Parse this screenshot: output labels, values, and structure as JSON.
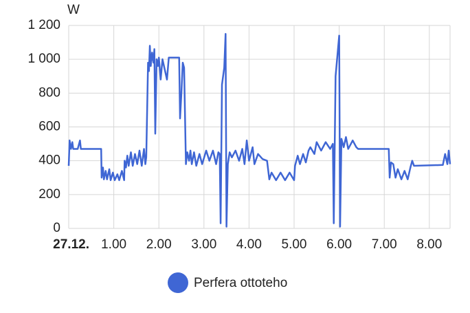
{
  "chart_data": {
    "type": "line",
    "y_label": "W",
    "xlim": [
      0,
      8.46
    ],
    "xticks": [
      {
        "value": 0,
        "label": "27.12."
      },
      {
        "value": 1,
        "label": "1.00"
      },
      {
        "value": 2,
        "label": "2.00"
      },
      {
        "value": 3,
        "label": "3.00"
      },
      {
        "value": 4,
        "label": "4.00"
      },
      {
        "value": 5,
        "label": "5.00"
      },
      {
        "value": 6,
        "label": "6.00"
      },
      {
        "value": 7,
        "label": "7.00"
      },
      {
        "value": 8,
        "label": "8.00"
      }
    ],
    "ylim": [
      0,
      1200
    ],
    "yticks": [
      0,
      200,
      400,
      600,
      800,
      {
        "value": 1000,
        "label": "1 000"
      },
      {
        "value": 1200,
        "label": "1 200"
      }
    ],
    "grid": true,
    "x": [
      0,
      0.02,
      0.05,
      0.08,
      0.1,
      0.2,
      0.25,
      0.27,
      0.72,
      0.73,
      0.76,
      0.78,
      0.82,
      0.85,
      0.9,
      0.93,
      0.98,
      1.02,
      1.08,
      1.12,
      1.18,
      1.23,
      1.24,
      1.27,
      1.3,
      1.33,
      1.38,
      1.42,
      1.47,
      1.52,
      1.57,
      1.62,
      1.67,
      1.7,
      1.72,
      1.76,
      1.78,
      1.8,
      1.82,
      1.85,
      1.88,
      1.9,
      1.92,
      1.95,
      1.98,
      2.0,
      2.04,
      2.08,
      2.18,
      2.22,
      2.45,
      2.47,
      2.5,
      2.53,
      2.56,
      2.6,
      2.63,
      2.67,
      2.7,
      2.73,
      2.78,
      2.83,
      2.9,
      2.96,
      3.05,
      3.12,
      3.2,
      3.27,
      3.32,
      3.35,
      3.37,
      3.4,
      3.45,
      3.48,
      3.5,
      3.53,
      3.57,
      3.62,
      3.7,
      3.78,
      3.85,
      3.9,
      3.95,
      4.0,
      4.08,
      4.12,
      4.2,
      4.3,
      4.4,
      4.45,
      4.5,
      4.6,
      4.7,
      4.8,
      4.9,
      5.0,
      5.02,
      5.08,
      5.13,
      5.2,
      5.26,
      5.32,
      5.36,
      5.45,
      5.5,
      5.6,
      5.7,
      5.8,
      5.86,
      5.88,
      5.92,
      5.97,
      6.0,
      6.02,
      6.05,
      6.1,
      6.15,
      6.2,
      6.3,
      6.38,
      6.42,
      7.1,
      7.12,
      7.15,
      7.2,
      7.25,
      7.3,
      7.38,
      7.45,
      7.52,
      7.58,
      7.62,
      7.66,
      8.3,
      8.35,
      8.4,
      8.43,
      8.46
    ],
    "series": [
      {
        "name": "Perfera ottoteho",
        "color": "#3f66d4",
        "values": [
          370,
          520,
          470,
          510,
          470,
          470,
          520,
          470,
          470,
          300,
          360,
          290,
          340,
          290,
          350,
          285,
          330,
          285,
          320,
          285,
          340,
          285,
          400,
          360,
          430,
          370,
          450,
          370,
          440,
          380,
          460,
          370,
          470,
          380,
          420,
          980,
          930,
          1080,
          960,
          1040,
          980,
          1060,
          560,
          1000,
          960,
          1010,
          880,
          1000,
          880,
          1010,
          1010,
          650,
          800,
          980,
          950,
          380,
          450,
          400,
          460,
          380,
          450,
          370,
          440,
          380,
          460,
          400,
          460,
          380,
          450,
          440,
          30,
          850,
          950,
          1150,
          10,
          380,
          450,
          420,
          460,
          400,
          470,
          380,
          520,
          400,
          480,
          380,
          440,
          410,
          400,
          290,
          330,
          285,
          330,
          285,
          330,
          285,
          370,
          430,
          380,
          440,
          390,
          460,
          480,
          440,
          510,
          460,
          510,
          470,
          500,
          30,
          900,
          1050,
          1140,
          10,
          530,
          480,
          540,
          470,
          520,
          480,
          470,
          470,
          300,
          390,
          380,
          300,
          350,
          290,
          340,
          290,
          360,
          400,
          370,
          375,
          440,
          380,
          460,
          380
        ]
      }
    ]
  }
}
